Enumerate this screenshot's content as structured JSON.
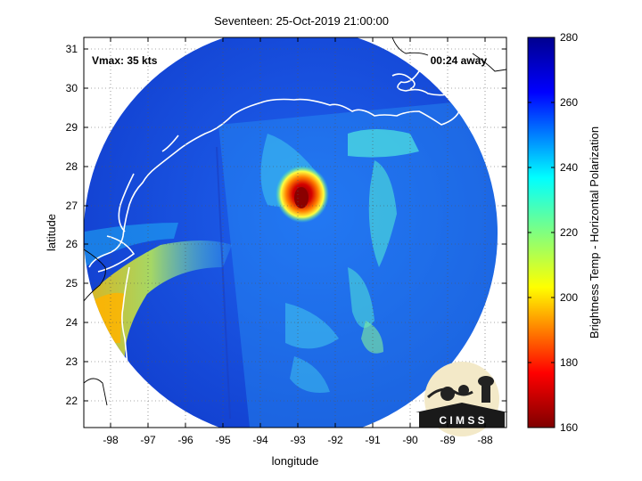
{
  "title": "Seventeen: 25-Oct-2019 21:00:00",
  "vmax_label": "Vmax: 35 kts",
  "time_away": "00:24 away",
  "logo_text": "C I M S S",
  "axes": {
    "xlabel": "longitude",
    "ylabel": "latitude",
    "x_ticks": [
      "-98",
      "-97",
      "-96",
      "-95",
      "-94",
      "-93",
      "-92",
      "-91",
      "-90",
      "-89",
      "-88"
    ],
    "y_ticks": [
      "31",
      "30",
      "29",
      "28",
      "27",
      "26",
      "25",
      "24",
      "23",
      "22"
    ],
    "x_range": [
      -98.6,
      -87.4
    ],
    "y_range": [
      21.3,
      31.3
    ],
    "grid": "dotted"
  },
  "colorbar": {
    "label": "Brightness Temp - Horizontal Polarization",
    "ticks": [
      "280",
      "260",
      "240",
      "220",
      "200",
      "180",
      "160"
    ],
    "range": [
      160,
      280
    ],
    "colormap": "jet"
  },
  "colors": {
    "cold_core": "#7a0000",
    "warm_background": "#1a3fd6",
    "coast": "#ffffff"
  }
}
